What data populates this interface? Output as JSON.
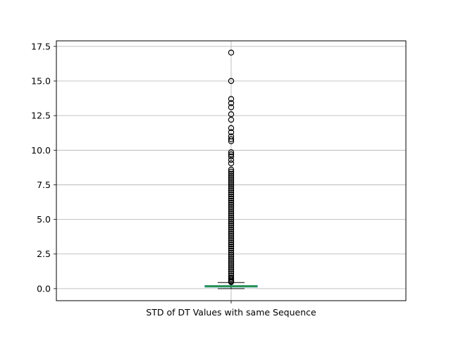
{
  "chart_data": {
    "type": "boxplot",
    "categories": [
      "STD of DT Values with same Sequence"
    ],
    "title": "",
    "xlabel": "",
    "ylabel": "",
    "ylim": [
      -0.87,
      17.9
    ],
    "yticks": [
      0.0,
      2.5,
      5.0,
      7.5,
      10.0,
      12.5,
      15.0,
      17.5
    ],
    "ytick_labels": [
      "0.0",
      "2.5",
      "5.0",
      "7.5",
      "10.0",
      "12.5",
      "15.0",
      "17.5"
    ],
    "grid": true,
    "box": {
      "whisker_low": 0.0,
      "q1": 0.12,
      "median": 0.17,
      "q3": 0.22,
      "whisker_high": 0.44
    },
    "outliers": [
      17.05,
      15.0,
      13.7,
      13.4,
      13.1,
      12.6,
      12.2,
      11.6,
      11.3,
      11.0,
      10.8,
      10.65,
      9.85,
      9.7,
      9.55,
      9.3,
      9.05,
      8.6,
      8.45,
      8.3,
      8.15,
      8.0,
      7.85,
      7.7,
      7.55,
      7.4,
      7.25,
      7.1,
      6.95,
      6.8,
      6.65,
      6.5,
      6.35,
      6.2,
      6.05,
      5.9,
      5.75,
      5.6,
      5.45,
      5.3,
      5.15,
      5.0,
      4.85,
      4.7,
      4.55,
      4.4,
      4.25,
      4.1,
      3.95,
      3.8,
      3.65,
      3.5,
      3.35,
      3.2,
      3.05,
      2.9,
      2.75,
      2.6,
      2.45,
      2.3,
      2.15,
      2.0,
      1.85,
      1.7,
      1.55,
      1.4,
      1.25,
      1.1,
      0.95,
      0.8,
      0.7,
      0.6,
      0.52,
      0.47
    ],
    "colors": {
      "box": "#1f77b4",
      "median": "#2ca02c",
      "whisker": "#000000",
      "outlier_edge": "#000000",
      "grid": "#b0b0b0"
    }
  }
}
